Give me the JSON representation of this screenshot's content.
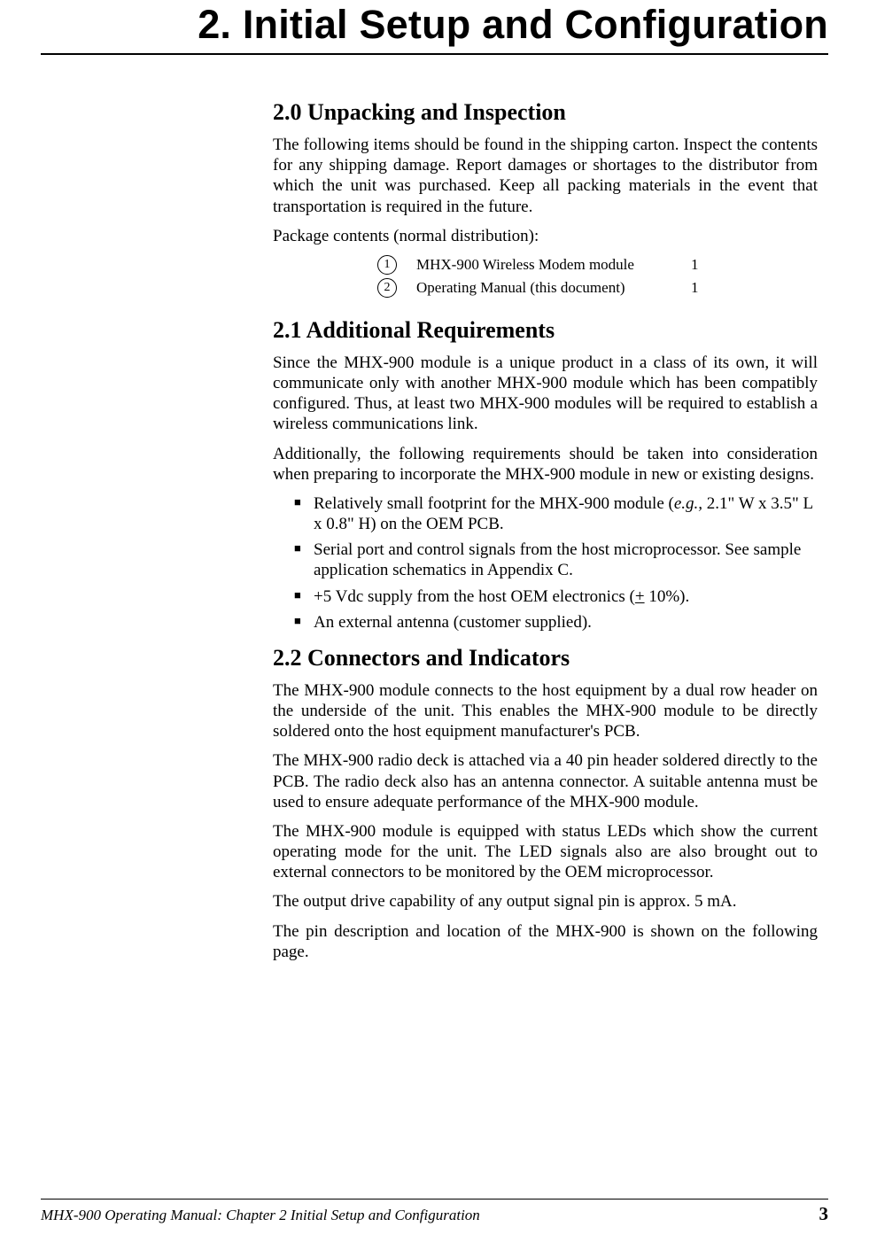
{
  "chapter_title": "2. Initial Setup and Configuration",
  "section20": {
    "title": "2.0  Unpacking and Inspection",
    "p1": "The following items should be found in the shipping carton.  Inspect the contents for any shipping damage.  Report damages or shortages to the distributor from which the unit was purchased.  Keep all packing materials in the event that transportation is required in the future.",
    "p2": "Package contents (normal distribution):",
    "items": [
      {
        "num": "1",
        "desc": "MHX-900 Wireless Modem module",
        "qty": "1"
      },
      {
        "num": "2",
        "desc": "Operating Manual (this document)",
        "qty": "1"
      }
    ]
  },
  "section21": {
    "title": "2.1  Additional Requirements",
    "p1": "Since the MHX-900 module is a unique product in a class of its own, it will communicate only with another MHX-900 module which has been compatibly configured.  Thus, at least two MHX-900 modules will be required to establish a wireless communications link.",
    "p2": "Additionally, the following requirements should be taken into consideration when preparing to incorporate the MHX-900 module in new or existing designs.",
    "b1_a": "Relatively small footprint for the MHX-900 module (",
    "b1_eg": "e.g.,",
    "b1_b": " 2.1\" W x 3.5\" L x 0.8\" H) on the OEM PCB.",
    "b2": "Serial port and control signals from the host microprocessor. See sample application schematics in Appendix C.",
    "b3_a": "+5 Vdc supply from the host OEM electronics (",
    "b3_pm": "+",
    "b3_b": " 10%).",
    "b4": "An external antenna (customer supplied)."
  },
  "section22": {
    "title": "2.2  Connectors and Indicators",
    "p1": "The MHX-900 module connects to the host equipment by a dual row header on the underside of the unit.  This enables the MHX-900 module to be directly soldered onto the host equipment manufacturer's PCB.",
    "p2": "The MHX-900 radio deck is attached via a 40 pin header soldered directly to the PCB.  The radio deck also has an antenna connector.  A suitable antenna must be used to ensure adequate performance of the MHX-900 module.",
    "p3": "The MHX-900 module is equipped with status LEDs which show the current operating mode for the unit.  The LED signals also are also brought out to external connectors to be monitored by the OEM microprocessor.",
    "p4": "The output drive capability of any output signal pin is approx. 5 mA.",
    "p5": "The pin description and location of the MHX-900 is shown on the following page."
  },
  "footer": {
    "left": "MHX-900 Operating Manual: Chapter 2 Initial Setup and Configuration",
    "page": "3"
  }
}
